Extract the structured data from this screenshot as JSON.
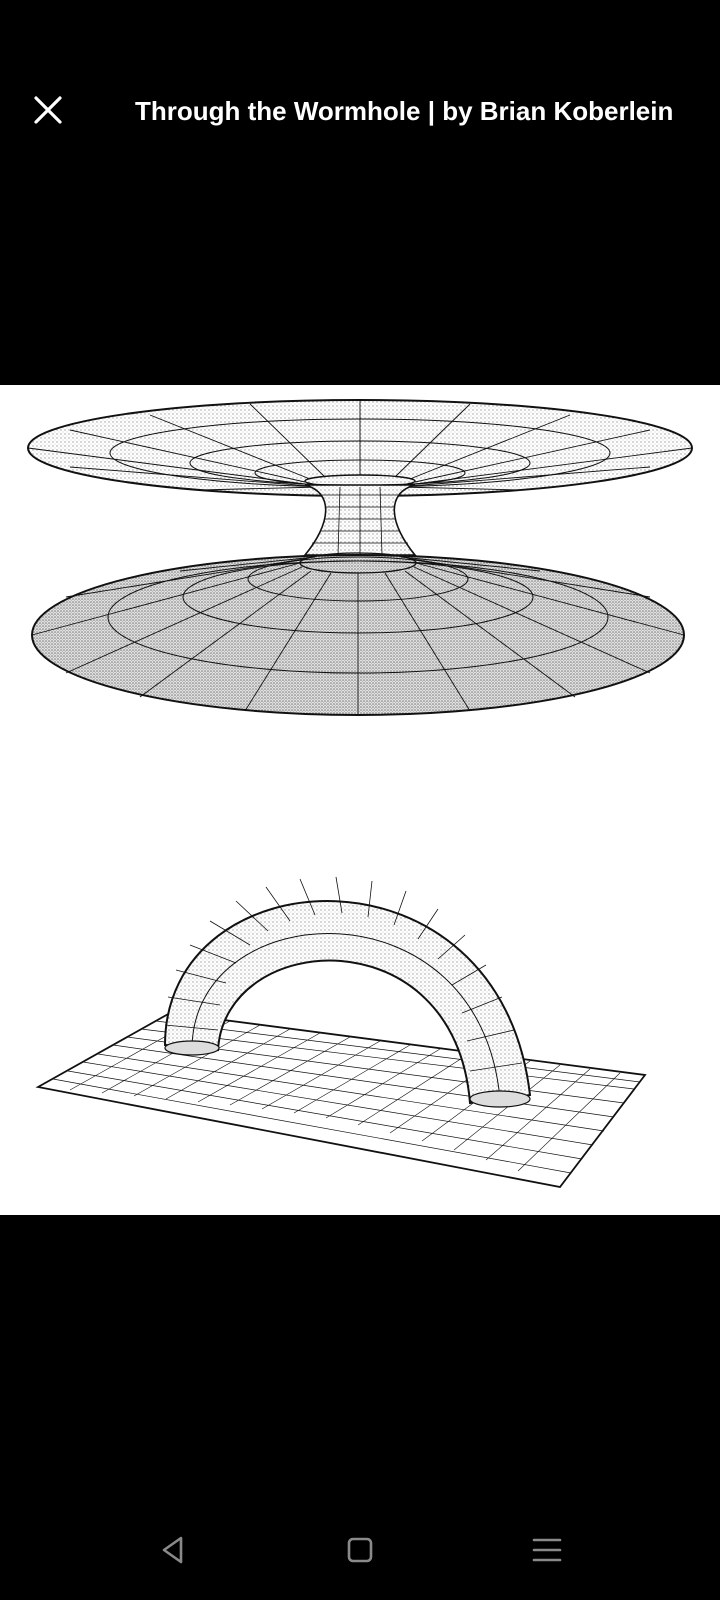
{
  "header": {
    "title": "Through the Wormhole | by Brian Koberlein",
    "close_icon": "close-icon"
  },
  "image": {
    "subject": "wormhole-illustrations"
  },
  "nav_bar": {
    "back_icon": "back-triangle-icon",
    "home_icon": "home-square-icon",
    "recents_icon": "menu-lines-icon"
  },
  "colors": {
    "background": "#000000",
    "panel": "#ffffff",
    "text": "#ffffff",
    "nav_icon": "#8a8a8a"
  }
}
